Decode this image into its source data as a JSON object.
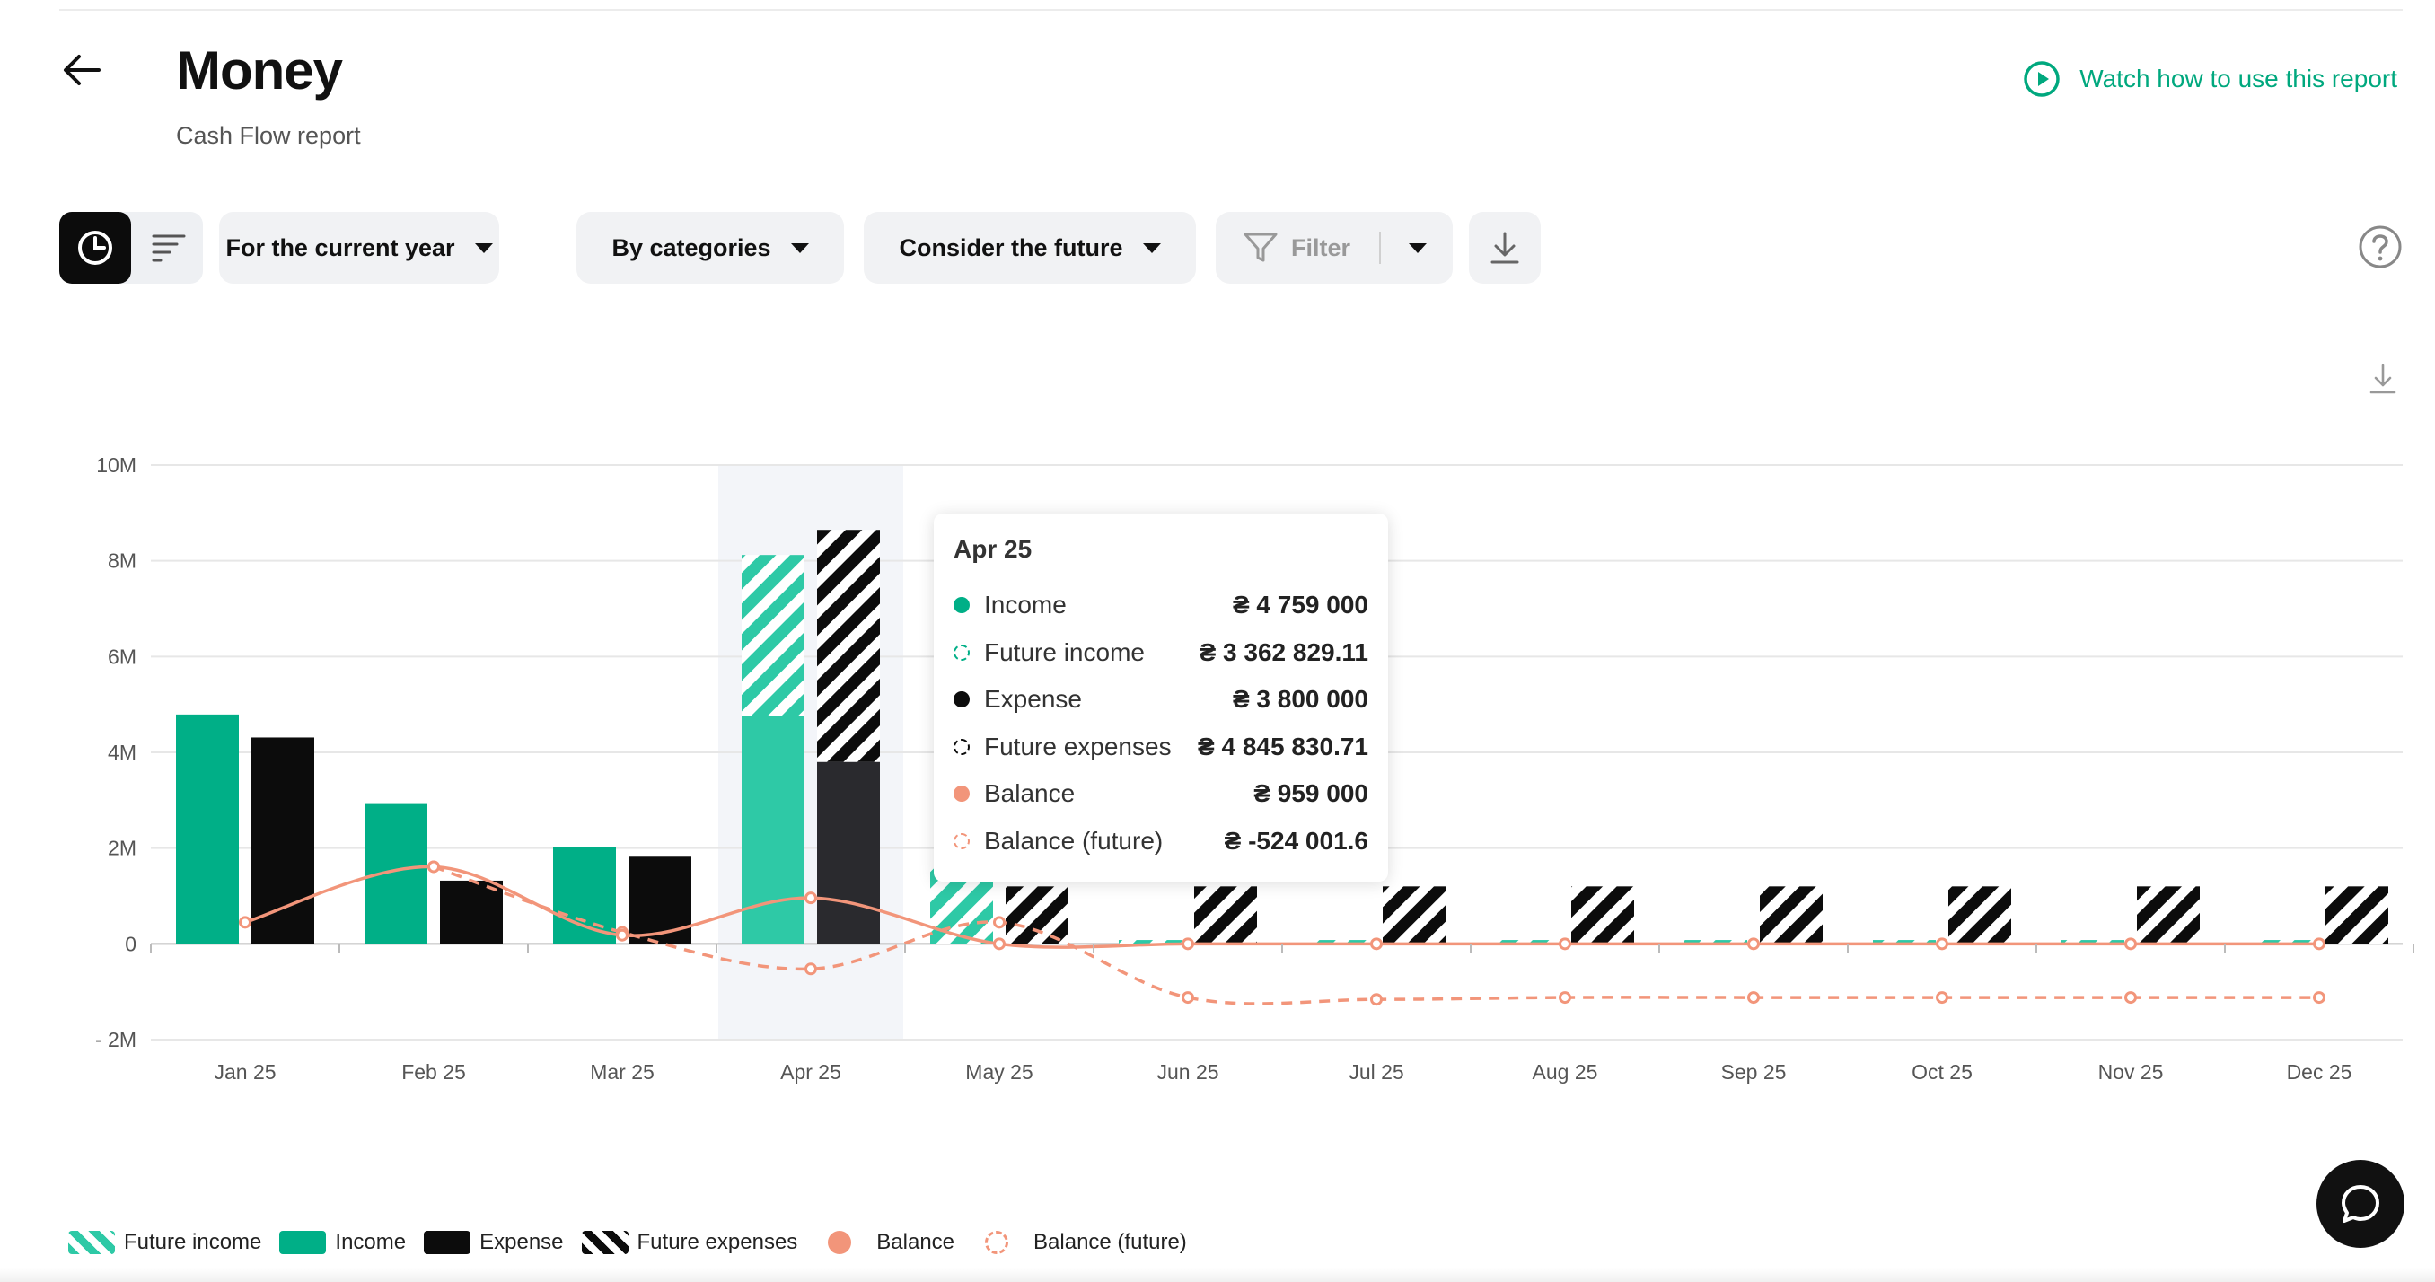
{
  "header": {
    "title": "Money",
    "subtitle": "Cash Flow report",
    "watch_link": "Watch how to use this report"
  },
  "toolbar": {
    "period": "For the current year",
    "grouping": "By categories",
    "future": "Consider the future",
    "filter": "Filter"
  },
  "colors": {
    "income": "#00af87",
    "future_income": "#2ec9a6",
    "expense": "#0c0c0c",
    "balance": "#f2957a",
    "accent": "#00a87e"
  },
  "chart_data": {
    "type": "bar",
    "categories": [
      "Jan 25",
      "Feb 25",
      "Mar 25",
      "Apr 25",
      "May 25",
      "Jun 25",
      "Jul 25",
      "Aug 25",
      "Sep 25",
      "Oct 25",
      "Nov 25",
      "Dec 25"
    ],
    "y_tick_labels": [
      "10M",
      "8M",
      "6M",
      "4M",
      "2M",
      "0",
      "- 2M"
    ],
    "ylim": [
      -2000000,
      10000000
    ],
    "grid": true,
    "legend_position": "bottom-left",
    "highlighted_category": "Apr 25",
    "series": [
      {
        "name": "Future income",
        "kind": "bar-hatched-green",
        "values": [
          0,
          0,
          0,
          3362829.11,
          1650000,
          80000,
          80000,
          80000,
          80000,
          80000,
          80000,
          80000
        ]
      },
      {
        "name": "Income",
        "kind": "bar-green",
        "values": [
          4790000,
          2920000,
          2020000,
          4759000,
          0,
          0,
          0,
          0,
          0,
          0,
          0,
          0
        ]
      },
      {
        "name": "Expense",
        "kind": "bar-black",
        "values": [
          4310000,
          1320000,
          1820000,
          3800000,
          0,
          0,
          0,
          0,
          0,
          0,
          0,
          0
        ]
      },
      {
        "name": "Future expenses",
        "kind": "bar-hatched-black",
        "values": [
          0,
          0,
          0,
          4845830.71,
          1200000,
          1200000,
          1200000,
          1200000,
          1200000,
          1200000,
          1200000,
          1200000
        ]
      },
      {
        "name": "Balance",
        "kind": "line-solid",
        "values": [
          450000,
          1610000,
          180000,
          959000,
          0,
          0,
          0,
          0,
          0,
          0,
          0,
          0
        ]
      },
      {
        "name": "Balance (future)",
        "kind": "line-dashed",
        "values": [
          null,
          1610000,
          240000,
          -524001.6,
          450000,
          -1120000,
          -1160000,
          -1120000,
          -1120000,
          -1120000,
          -1120000,
          -1120000
        ]
      }
    ],
    "tooltip": {
      "title": "Apr 25",
      "rows": [
        {
          "label": "Income",
          "value": "₴ 4 759 000",
          "dot": "solid-green"
        },
        {
          "label": "Future income",
          "value": "₴ 3 362 829.11",
          "dot": "dashed-green"
        },
        {
          "label": "Expense",
          "value": "₴ 3 800 000",
          "dot": "solid-black"
        },
        {
          "label": "Future expenses",
          "value": "₴ 4 845 830.71",
          "dot": "dashed-black"
        },
        {
          "label": "Balance",
          "value": "₴ 959 000",
          "dot": "solid-salmon"
        },
        {
          "label": "Balance (future)",
          "value": "₴ -524 001.6",
          "dot": "dashed-salmon"
        }
      ]
    }
  }
}
